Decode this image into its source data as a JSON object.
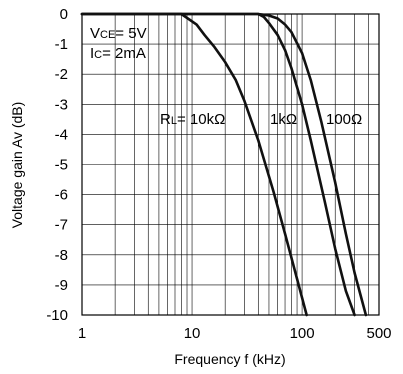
{
  "chart_data": {
    "type": "line",
    "title": "",
    "xlabel": "Frequency f (kHz)",
    "ylabel": "Voltage gain Av (dB)",
    "x_scale": "log",
    "xlim": [
      1,
      500
    ],
    "ylim": [
      -10,
      0
    ],
    "grid": true,
    "x_tick_labels": [
      "1",
      "10",
      "100",
      "500"
    ],
    "x_tick_values": [
      1,
      10,
      100,
      500
    ],
    "y_tick_labels": [
      "0",
      "-1",
      "-2",
      "-3",
      "-4",
      "-5",
      "-6",
      "-7",
      "-8",
      "-9",
      "-10"
    ],
    "y_tick_values": [
      0,
      -1,
      -2,
      -3,
      -4,
      -5,
      -6,
      -7,
      -8,
      -9,
      -10
    ],
    "conditions": {
      "vce": {
        "main": "V",
        "sub": "CE",
        "rest": "= 5V"
      },
      "ic": {
        "main": "I",
        "sub": "C",
        "rest": "= 2mA"
      }
    },
    "series": [
      {
        "name": "RL= 10kΩ",
        "label_main": "R",
        "label_sub": "L",
        "label_rest": "= 10kΩ",
        "x": [
          1,
          8,
          11,
          13,
          16,
          20,
          25,
          30,
          40,
          55,
          70,
          90,
          110
        ],
        "y": [
          0,
          0,
          -0.35,
          -0.7,
          -1.1,
          -1.6,
          -2.2,
          -2.9,
          -4.2,
          -5.9,
          -7.3,
          -8.8,
          -10
        ]
      },
      {
        "name": "1kΩ",
        "label_main": "1kΩ",
        "label_sub": "",
        "label_rest": "",
        "x": [
          1,
          40,
          45,
          50,
          60,
          70,
          80,
          100,
          120,
          160,
          200,
          250,
          300
        ],
        "y": [
          0,
          0,
          -0.1,
          -0.3,
          -0.7,
          -1.2,
          -1.8,
          -3.0,
          -4.2,
          -6.2,
          -7.8,
          -9.2,
          -10
        ]
      },
      {
        "name": "100Ω",
        "label_main": "100Ω",
        "label_sub": "",
        "label_rest": "",
        "x": [
          1,
          40,
          50,
          60,
          70,
          80,
          100,
          120,
          150,
          200,
          250,
          300,
          380
        ],
        "y": [
          0,
          0,
          -0.05,
          -0.15,
          -0.35,
          -0.6,
          -1.3,
          -2.2,
          -3.6,
          -5.6,
          -7.3,
          -8.6,
          -10
        ]
      }
    ]
  }
}
